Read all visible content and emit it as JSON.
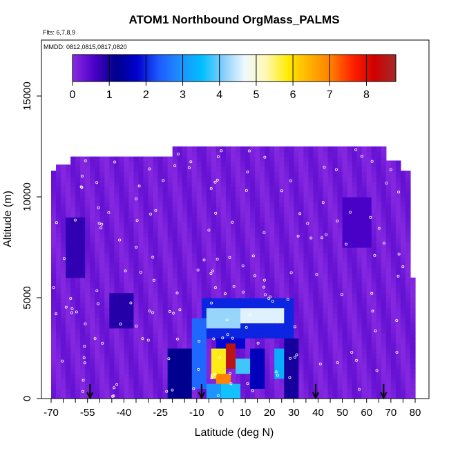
{
  "chart_data": {
    "type": "heatmap",
    "title": "ATOM1 Northbound OrgMass_PALMS",
    "annotations": [
      "Flts: 6,7,8,9",
      "MMDD: 0812,0815,0817,0820"
    ],
    "xlabel": "Latitude (deg N)",
    "ylabel": "Altitude (m)",
    "xlim": [
      -70,
      80
    ],
    "ylim": [
      0,
      17500
    ],
    "x_ticks": [
      "-70",
      "-55",
      "-40",
      "-25",
      "-10",
      "0",
      "10",
      "20",
      "30",
      "40",
      "50",
      "60",
      "70",
      "80"
    ],
    "x_tick_values": [
      -70,
      -55,
      -40,
      -25,
      -10,
      0,
      10,
      20,
      30,
      40,
      50,
      60,
      70,
      80
    ],
    "x_minor_step": 5,
    "y_ticks": [
      "0",
      "5000",
      "10000",
      "15000"
    ],
    "y_tick_values": [
      0,
      5000,
      10000,
      15000
    ],
    "colorbar": {
      "min": 0,
      "max": 8.8,
      "tick_labels": [
        "0",
        "1",
        "2",
        "3",
        "4",
        "5",
        "6",
        "7",
        "8"
      ],
      "tick_values": [
        0,
        1,
        2,
        3,
        4,
        5,
        6,
        7,
        8
      ],
      "colors": [
        "#8a2be2",
        "#4b00c8",
        "#00008b",
        "#0000cd",
        "#1e5aff",
        "#1e90ff",
        "#00bfff",
        "#87cefa",
        "#f0f8ff",
        "#fff8b0",
        "#ffeb00",
        "#ffb000",
        "#ff7f00",
        "#ff2000",
        "#d00000",
        "#a52a2a"
      ]
    },
    "flight_arrows_lat": [
      -54,
      -8,
      39,
      67
    ],
    "fields": [
      {
        "lat": [
          -70,
          80
        ],
        "alt": [
          0,
          12500
        ],
        "value": 0.2,
        "note": "background"
      },
      {
        "lat": [
          -64,
          -56
        ],
        "alt": [
          6000,
          9000
        ],
        "value": 0.8
      },
      {
        "lat": [
          -45,
          -36
        ],
        "alt": [
          3500,
          5200
        ],
        "value": 0.9
      },
      {
        "lat": [
          50,
          62
        ],
        "alt": [
          7500,
          10000
        ],
        "value": 0.6
      },
      {
        "lat": [
          -22,
          -12
        ],
        "alt": [
          0,
          2500
        ],
        "value": 1.2
      },
      {
        "lat": [
          -12,
          -6
        ],
        "alt": [
          500,
          4000
        ],
        "value": 2.5
      },
      {
        "lat": [
          -8,
          30
        ],
        "alt": [
          3000,
          4900
        ],
        "value": 2.0
      },
      {
        "lat": [
          -6,
          8
        ],
        "alt": [
          3500,
          4500
        ],
        "value": 4.2
      },
      {
        "lat": [
          8,
          26
        ],
        "alt": [
          3800,
          4400
        ],
        "value": 4.6
      },
      {
        "lat": [
          -4,
          2
        ],
        "alt": [
          1000,
          2600
        ],
        "value": 5.8
      },
      {
        "lat": [
          2,
          6
        ],
        "alt": [
          1500,
          2800
        ],
        "value": 8.5
      },
      {
        "lat": [
          -2,
          4
        ],
        "alt": [
          800,
          1300
        ],
        "value": 7.0
      },
      {
        "lat": [
          6,
          12
        ],
        "alt": [
          1200,
          2000
        ],
        "value": 3.8
      },
      {
        "lat": [
          12,
          18
        ],
        "alt": [
          500,
          2500
        ],
        "value": 1.6
      },
      {
        "lat": [
          22,
          26
        ],
        "alt": [
          1000,
          2500
        ],
        "value": 3.3
      },
      {
        "lat": [
          -6,
          0
        ],
        "alt": [
          0,
          800
        ],
        "value": 3.0
      },
      {
        "lat": [
          0,
          8
        ],
        "alt": [
          0,
          700
        ],
        "value": 3.6
      },
      {
        "lat": [
          26,
          32
        ],
        "alt": [
          0,
          3000
        ],
        "value": 1.0
      },
      {
        "lat": [
          -2,
          10
        ],
        "alt": [
          2600,
          3400
        ],
        "value": 1.8
      }
    ]
  }
}
